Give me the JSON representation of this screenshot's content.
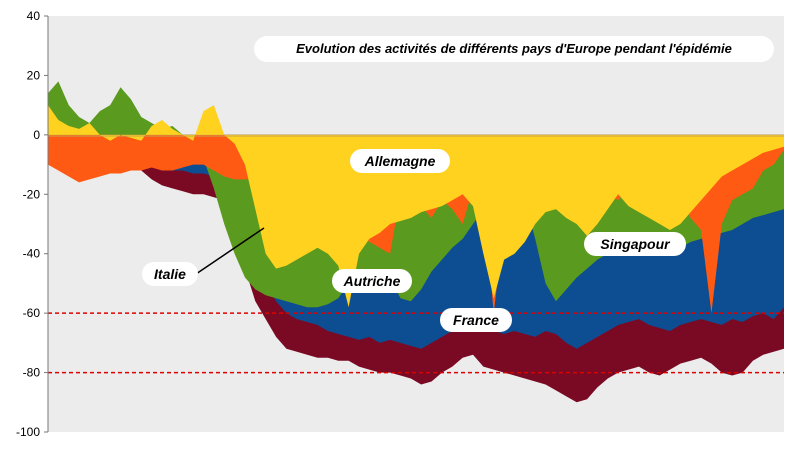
{
  "chart_data": {
    "type": "area",
    "title": "Evolution des activités de différents pays d'Europe pendant l'épidémie",
    "xlabel": "",
    "ylabel": "",
    "ylim": [
      -100,
      40
    ],
    "yticks": [
      40,
      20,
      0,
      -20,
      -40,
      -60,
      -80,
      -100
    ],
    "x_categories_visible": false,
    "reference_lines": [
      {
        "y": -60,
        "style": "dashed",
        "color": "#dd0000"
      },
      {
        "y": -80,
        "style": "dashed",
        "color": "#dd0000"
      }
    ],
    "series": [
      {
        "name": "Italie",
        "color": "#7a0a24",
        "values": [
          -4,
          -3,
          -4,
          -5,
          -6,
          -5,
          -8,
          -7,
          -9,
          -12,
          -15,
          -17,
          -18,
          -19,
          -20,
          -20,
          -21,
          -22,
          -26,
          -45,
          -56,
          -62,
          -68,
          -72,
          -73,
          -74,
          -75,
          -75,
          -76,
          -76,
          -78,
          -79,
          -80,
          -80,
          -81,
          -82,
          -84,
          -83,
          -80,
          -78,
          -75,
          -74,
          -78,
          -79,
          -80,
          -81,
          -82,
          -83,
          -84,
          -86,
          -88,
          -90,
          -89,
          -85,
          -82,
          -80,
          -79,
          -78,
          -80,
          -81,
          -79,
          -77,
          -76,
          -75,
          -77,
          -80,
          -81,
          -80,
          -76,
          -74,
          -73,
          -72
        ]
      },
      {
        "name": "France",
        "color": "#0d4d91",
        "values": [
          -3,
          -4,
          -3,
          -5,
          -4,
          -6,
          -5,
          -7,
          -8,
          -9,
          -10,
          -10,
          -12,
          -12,
          -13,
          -13,
          -14,
          -15,
          -18,
          -20,
          -40,
          -50,
          -56,
          -60,
          -62,
          -63,
          -64,
          -66,
          -67,
          -68,
          -69,
          -68,
          -70,
          -69,
          -70,
          -71,
          -72,
          -70,
          -68,
          -66,
          -65,
          -64,
          -65,
          -66,
          -67,
          -66,
          -67,
          -68,
          -66,
          -67,
          -70,
          -72,
          -70,
          -68,
          -66,
          -64,
          -63,
          -62,
          -64,
          -65,
          -66,
          -64,
          -63,
          -62,
          -63,
          -64,
          -62,
          -63,
          -61,
          -60,
          -62,
          -58
        ]
      },
      {
        "name": "Autriche",
        "color": "#5a9a1e",
        "values": [
          14,
          18,
          10,
          6,
          4,
          8,
          10,
          16,
          12,
          6,
          4,
          2,
          3,
          0,
          -3,
          -8,
          -18,
          -30,
          -40,
          -48,
          -52,
          -54,
          -55,
          -56,
          -57,
          -58,
          -58,
          -57,
          -55,
          -50,
          -48,
          -46,
          -47,
          -48,
          -55,
          -56,
          -52,
          -46,
          -42,
          -38,
          -35,
          -30,
          -25,
          -22,
          -20,
          -21,
          -22,
          -35,
          -50,
          -56,
          -52,
          -48,
          -45,
          -42,
          -40,
          -38,
          -37,
          -36,
          -35,
          -38,
          -40,
          -38,
          -36,
          -35,
          -34,
          -33,
          -32,
          -30,
          -28,
          -27,
          -26,
          -25
        ]
      },
      {
        "name": "Singapour",
        "color": "#ff5a14",
        "values": [
          -10,
          -12,
          -14,
          -16,
          -15,
          -14,
          -13,
          -13,
          -12,
          -12,
          -11,
          -12,
          -12,
          -11,
          -10,
          -10,
          -12,
          -14,
          -15,
          -15,
          -15,
          -16,
          -18,
          -20,
          -22,
          -24,
          -26,
          -28,
          -30,
          -32,
          -34,
          -36,
          -38,
          -40,
          -20,
          -22,
          -24,
          -28,
          -22,
          -25,
          -30,
          -18,
          -22,
          -60,
          -30,
          -24,
          -26,
          -28,
          -22,
          -18,
          -20,
          -24,
          -30,
          -25,
          -20,
          -22,
          -18,
          -15,
          -20,
          -30,
          -25,
          -22,
          -28,
          -32,
          -60,
          -30,
          -22,
          -20,
          -18,
          -12,
          -10,
          -5
        ]
      },
      {
        "name": "Allemagne",
        "color": "#ffd21f",
        "values": [
          10,
          5,
          3,
          2,
          4,
          0,
          -2,
          0,
          -1,
          -2,
          3,
          5,
          2,
          0,
          -2,
          8,
          10,
          0,
          -3,
          -10,
          -25,
          -40,
          -45,
          -44,
          -42,
          -40,
          -38,
          -40,
          -44,
          -58,
          -40,
          -35,
          -33,
          -30,
          -29,
          -28,
          -26,
          -25,
          -24,
          -22,
          -20,
          -24,
          -40,
          -55,
          -42,
          -40,
          -36,
          -30,
          -26,
          -25,
          -28,
          -30,
          -34,
          -30,
          -25,
          -20,
          -24,
          -26,
          -28,
          -30,
          -32,
          -30,
          -26,
          -22,
          -18,
          -14,
          -12,
          -10,
          -8,
          -6,
          -5,
          -4
        ]
      }
    ],
    "annotations": [
      {
        "text": "Allemagne"
      },
      {
        "text": "Singapour"
      },
      {
        "text": "Italie"
      },
      {
        "text": "Autriche"
      },
      {
        "text": "France"
      }
    ]
  }
}
